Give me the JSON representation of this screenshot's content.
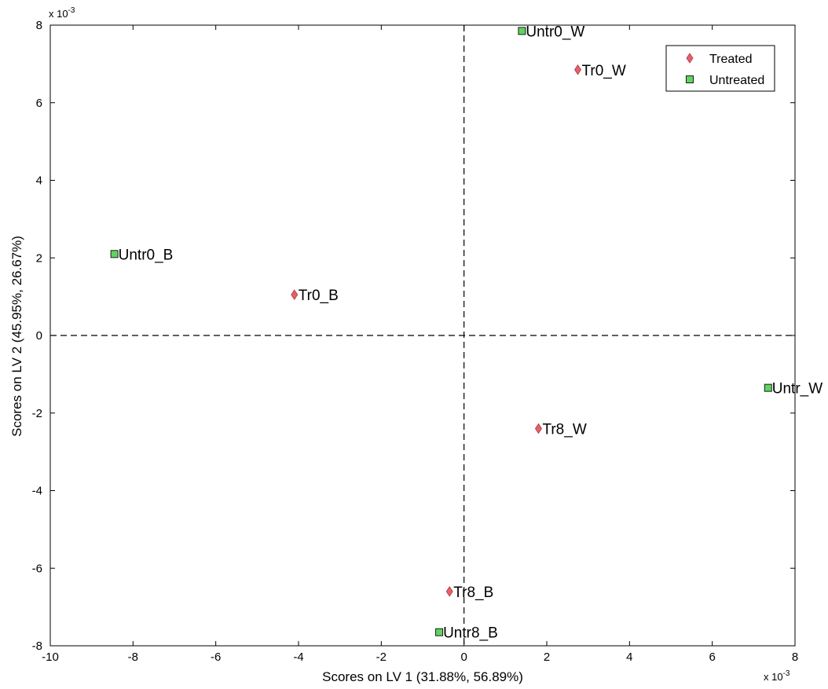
{
  "chart_data": {
    "type": "scatter",
    "xlabel": "Scores on LV 1 (31.88%, 56.89%)",
    "ylabel": "Scores on LV 2 (45.95%, 26.67%)",
    "x_exponent": "x 10",
    "x_exponent_power": "-3",
    "y_exponent": "x 10",
    "y_exponent_power": "-3",
    "xlim": [
      -10,
      8
    ],
    "ylim": [
      -8,
      8
    ],
    "xticks": [
      -10,
      -8,
      -6,
      -4,
      -2,
      0,
      2,
      4,
      6,
      8
    ],
    "yticks": [
      -8,
      -6,
      -4,
      -2,
      0,
      2,
      4,
      6,
      8
    ],
    "xtick_labels": [
      "-10",
      "-8",
      "-6",
      "-4",
      "-2",
      "0",
      "2",
      "4",
      "6",
      "8"
    ],
    "ytick_labels": [
      "-8",
      "-6",
      "-4",
      "-2",
      "0",
      "2",
      "4",
      "6",
      "8"
    ],
    "legend_position": "top-right",
    "series": [
      {
        "name": "Treated",
        "marker": "diamond",
        "color": "#e8606a",
        "points": [
          {
            "label": "Tr0_W",
            "x": 2.75,
            "y": 6.85
          },
          {
            "label": "Tr0_B",
            "x": -4.1,
            "y": 1.05
          },
          {
            "label": "Tr8_W",
            "x": 1.8,
            "y": -2.4
          },
          {
            "label": "Tr8_B",
            "x": -0.35,
            "y": -6.6
          }
        ]
      },
      {
        "name": "Untreated",
        "marker": "square",
        "color": "#5fd45f",
        "points": [
          {
            "label": "Untr0_W",
            "x": 1.4,
            "y": 7.85
          },
          {
            "label": "Untr0_B",
            "x": -8.45,
            "y": 2.1
          },
          {
            "label": "Untr_W",
            "x": 7.35,
            "y": -1.35
          },
          {
            "label": "Untr8_B",
            "x": -0.6,
            "y": -7.65
          }
        ]
      }
    ]
  }
}
